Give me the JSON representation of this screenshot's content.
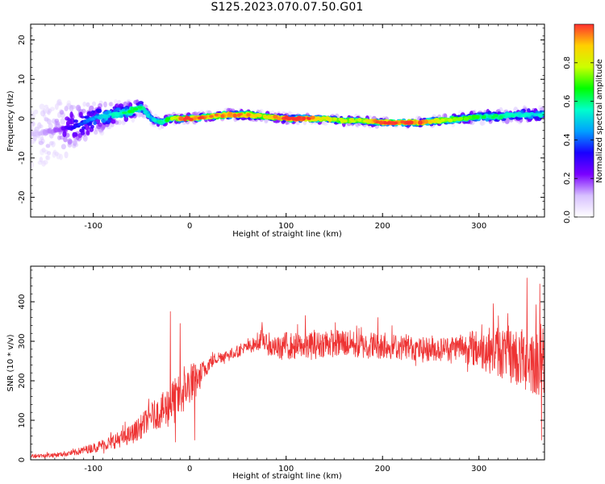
{
  "title": "S125.2023.070.07.50.G01",
  "chart_data": [
    {
      "type": "heatmap",
      "xlabel": "Height of straight line (km)",
      "ylabel": "Frequency (Hz)",
      "xlim": [
        -165,
        368
      ],
      "ylim": [
        -25,
        24
      ],
      "x_ticks": [
        -100,
        0,
        100,
        200,
        300
      ],
      "y_ticks": [
        -20,
        -10,
        0,
        10,
        20
      ],
      "colorbar": {
        "label": "Normalized spectral amplitude",
        "range": [
          0.0,
          1.0
        ],
        "ticks": [
          0.0,
          0.2,
          0.4,
          0.6,
          0.8
        ],
        "colormap": [
          "#ffffff",
          "#d7c0ff",
          "#7a00ff",
          "#1a00ff",
          "#00a0ff",
          "#00ffcc",
          "#00ff00",
          "#ccff00",
          "#ffd000",
          "#ff3030"
        ]
      },
      "ridge": {
        "x": [
          -160,
          -140,
          -120,
          -100,
          -80,
          -60,
          -50,
          -40,
          -30,
          -20,
          -10,
          0,
          20,
          40,
          60,
          80,
          100,
          120,
          140,
          160,
          180,
          200,
          220,
          240,
          260,
          280,
          300,
          320,
          340,
          360,
          368
        ],
        "y": [
          -4,
          -3,
          -2,
          0,
          1,
          2,
          3,
          0,
          -1,
          0,
          0,
          0,
          0.5,
          1,
          1,
          0.5,
          0,
          0,
          0,
          -0.5,
          -0.5,
          -1,
          -1,
          -1,
          -0.5,
          0,
          0.5,
          0.5,
          1,
          1,
          1
        ],
        "amplitude": [
          0.1,
          0.15,
          0.3,
          0.4,
          0.5,
          0.6,
          0.55,
          0.45,
          0.55,
          0.65,
          0.85,
          0.9,
          0.85,
          0.85,
          0.85,
          0.75,
          0.95,
          0.95,
          0.75,
          0.7,
          0.75,
          0.9,
          0.9,
          0.9,
          0.7,
          0.65,
          0.6,
          0.55,
          0.5,
          0.5,
          0.5
        ],
        "spread_hz": [
          18,
          14,
          9,
          6,
          4,
          3,
          2.5,
          1.5,
          1.5,
          1.2,
          1.2,
          1.2,
          1.2,
          1.5,
          1.5,
          1.2,
          1.2,
          1.2,
          1.2,
          1.2,
          1.2,
          1.2,
          1.2,
          1.2,
          1.5,
          1.8,
          2,
          2,
          2.2,
          2.5,
          2.5
        ]
      }
    },
    {
      "type": "line",
      "xlabel": "Height of straight line (km)",
      "ylabel": "SNR (10 * v/v)",
      "xlim": [
        -165,
        368
      ],
      "ylim": [
        0,
        490
      ],
      "x_ticks": [
        -100,
        0,
        100,
        200,
        300
      ],
      "y_ticks": [
        0,
        100,
        200,
        300,
        400
      ],
      "color": "#ee3333",
      "x": [
        -165,
        -140,
        -120,
        -100,
        -80,
        -60,
        -50,
        -40,
        -30,
        -20,
        -10,
        0,
        10,
        20,
        30,
        40,
        50,
        60,
        70,
        75,
        80,
        90,
        100,
        120,
        140,
        160,
        180,
        200,
        220,
        240,
        260,
        280,
        300,
        320,
        340,
        360,
        368
      ],
      "y": [
        10,
        12,
        18,
        30,
        45,
        65,
        85,
        110,
        120,
        140,
        160,
        190,
        210,
        245,
        260,
        265,
        275,
        285,
        295,
        310,
        290,
        280,
        290,
        285,
        295,
        295,
        290,
        290,
        285,
        280,
        280,
        285,
        280,
        275,
        260,
        250,
        250
      ],
      "noise": [
        5,
        6,
        8,
        12,
        18,
        25,
        30,
        35,
        40,
        60,
        55,
        50,
        35,
        20,
        15,
        15,
        15,
        15,
        20,
        25,
        25,
        30,
        35,
        35,
        35,
        35,
        35,
        35,
        30,
        30,
        30,
        35,
        50,
        65,
        80,
        90,
        90
      ],
      "peaks": [
        {
          "x": -20,
          "y": 375
        },
        {
          "x": -10,
          "y": 345
        },
        {
          "x": 120,
          "y": 365
        },
        {
          "x": 195,
          "y": 360
        },
        {
          "x": 315,
          "y": 395
        },
        {
          "x": 350,
          "y": 460
        },
        {
          "x": 363,
          "y": 445
        },
        {
          "x": -15,
          "y": 45
        },
        {
          "x": 5,
          "y": 50
        },
        {
          "x": 365,
          "y": 50
        }
      ]
    }
  ]
}
